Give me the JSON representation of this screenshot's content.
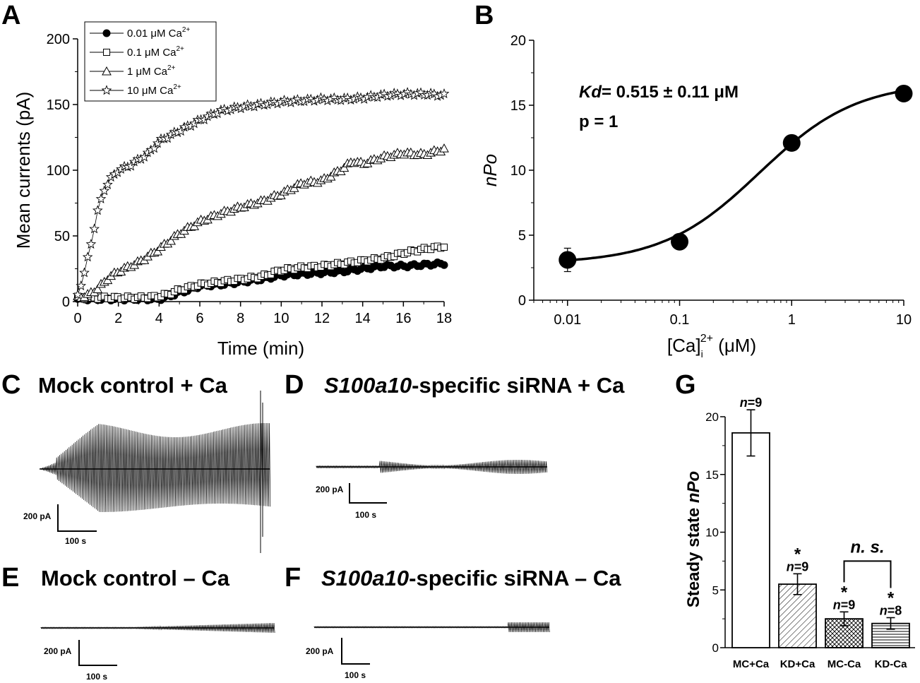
{
  "panels": {
    "A": {
      "label": "A"
    },
    "B": {
      "label": "B",
      "annotation_kd_sym": "Kd",
      "annotation_kd_val": "= 0.515 ± 0.11 μM",
      "annotation_p": "p = 1"
    },
    "C": {
      "label": "C",
      "title": "Mock control + Ca",
      "scale_y": "200 pA",
      "scale_x": "100 s"
    },
    "D": {
      "label": "D",
      "title_italic": "S100a10",
      "title_rest": "-specific siRNA + Ca",
      "scale_y": "200 pA",
      "scale_x": "100 s"
    },
    "E": {
      "label": "E",
      "title": "Mock control – Ca",
      "scale_y": "200 pA",
      "scale_x": "100 s"
    },
    "F": {
      "label": "F",
      "title_italic": "S100a10",
      "title_rest": "-specific siRNA – Ca",
      "scale_y": "200 pA",
      "scale_x": "100 s"
    },
    "G": {
      "label": "G",
      "ns_label": "n. s."
    }
  },
  "chart_data": [
    {
      "id": "A",
      "type": "scatter",
      "xlabel": "Time (min)",
      "ylabel": "Mean currents (pA)",
      "xlim": [
        0,
        18
      ],
      "ylim": [
        0,
        200
      ],
      "xticks": [
        "0",
        "2",
        "4",
        "6",
        "8",
        "10",
        "12",
        "14",
        "16",
        "18"
      ],
      "yticks": [
        "0",
        "50",
        "100",
        "150",
        "200"
      ],
      "legend_position": "top-left",
      "series": [
        {
          "name": "0.01 μM Ca2+",
          "marker": "filled-circle",
          "x": [
            0,
            1,
            2,
            3,
            4,
            4.5,
            5,
            5.5,
            6,
            7,
            8,
            9,
            10,
            11,
            12,
            13,
            14,
            15,
            16,
            17,
            18
          ],
          "y": [
            2,
            2,
            2,
            2,
            2,
            4,
            7,
            9,
            12,
            13,
            15,
            17,
            20,
            21,
            22,
            23,
            25,
            27,
            27,
            28,
            29
          ]
        },
        {
          "name": "0.1 μM Ca2+",
          "marker": "open-square",
          "x": [
            0,
            1,
            2,
            3,
            4,
            4.5,
            5,
            5.5,
            6,
            7,
            8,
            9,
            10,
            11,
            12,
            13,
            14,
            15,
            16,
            17,
            18
          ],
          "y": [
            3,
            3,
            3,
            3,
            4,
            6,
            9,
            11,
            13,
            15,
            17,
            19,
            24,
            26,
            27,
            29,
            31,
            33,
            37,
            40,
            42
          ]
        },
        {
          "name": "1 μM Ca2+",
          "marker": "open-triangle",
          "x": [
            0,
            0.5,
            1,
            1.5,
            2,
            3,
            4,
            5,
            6,
            7,
            8,
            9,
            10,
            11,
            12,
            13,
            13.5,
            14,
            15,
            16,
            17,
            18
          ],
          "y": [
            3,
            5,
            10,
            18,
            23,
            30,
            40,
            52,
            61,
            67,
            72,
            76,
            82,
            90,
            92,
            101,
            107,
            105,
            110,
            113,
            112,
            116
          ]
        },
        {
          "name": "10 μM Ca2+",
          "marker": "open-star",
          "x": [
            0,
            0.3,
            0.6,
            1,
            1.3,
            1.6,
            2,
            2.5,
            3,
            3.5,
            4,
            5,
            6,
            7,
            8,
            9,
            10,
            11,
            12,
            13,
            14,
            15,
            16,
            17,
            18
          ],
          "y": [
            5,
            20,
            40,
            70,
            85,
            93,
            100,
            103,
            108,
            113,
            122,
            130,
            138,
            145,
            148,
            150,
            152,
            153,
            154,
            154,
            155,
            157,
            158,
            158,
            157
          ]
        }
      ]
    },
    {
      "id": "B",
      "type": "scatter",
      "xlabel": "[Ca]i2+ (μM)",
      "ylabel": "nPo",
      "xscale": "log",
      "xlim": [
        0.005,
        10
      ],
      "ylim": [
        0,
        20
      ],
      "xticks": [
        "0.01",
        "0.1",
        "1",
        "10"
      ],
      "yticks": [
        "0",
        "5",
        "10",
        "15",
        "20"
      ],
      "x": [
        0.01,
        0.1,
        1,
        10
      ],
      "y": [
        3.1,
        4.5,
        12.1,
        15.9
      ],
      "yerr": [
        0.9,
        0.3,
        0.3,
        0.3
      ],
      "fit": {
        "model": "hill",
        "kd": 0.515,
        "ymin": 2.8,
        "ymax": 16.8,
        "n": 1
      }
    },
    {
      "id": "G",
      "type": "bar",
      "ylabel": "Steady state nPo",
      "ylim": [
        0,
        20
      ],
      "yticks": [
        "0",
        "5",
        "10",
        "15",
        "20"
      ],
      "categories": [
        "MC+Ca",
        "KD+Ca",
        "MC-Ca",
        "KD-Ca"
      ],
      "values": [
        18.6,
        5.5,
        2.5,
        2.1
      ],
      "errors": [
        2.0,
        0.9,
        0.6,
        0.5
      ],
      "n_labels": [
        "=9",
        "=9",
        "=9",
        "=8"
      ],
      "significance": [
        "",
        "*",
        "*",
        "*"
      ],
      "fills": [
        "none",
        "diagonal",
        "crosshatch",
        "horizontal"
      ]
    }
  ]
}
